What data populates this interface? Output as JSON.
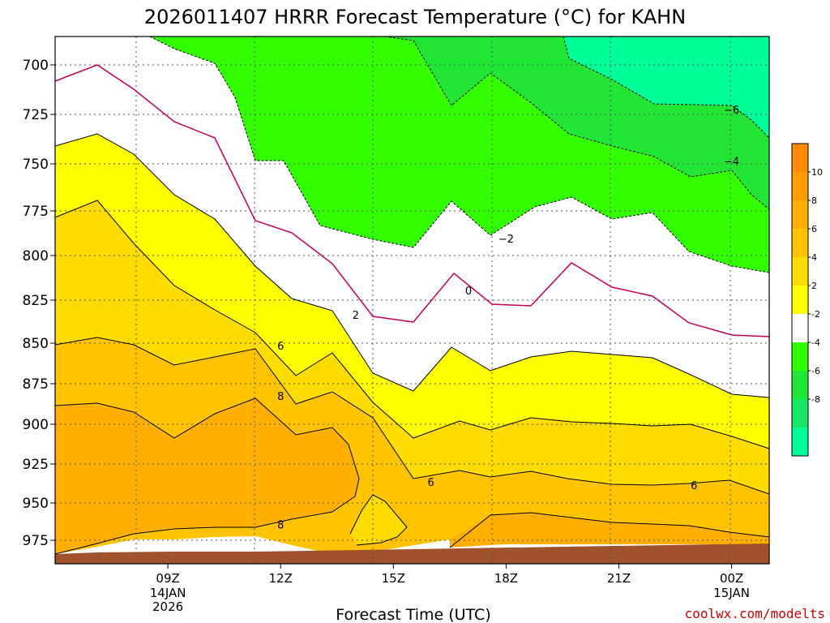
{
  "chart_data": {
    "type": "contour",
    "title": "2026011407 HRRR Forecast Temperature (°C) for KAHN",
    "xlabel": "Forecast Time (UTC)",
    "ylabel": "",
    "credit": "coolwx.com/modelts",
    "y_axis": {
      "quantity": "pressure (hPa)",
      "inverted": true,
      "ticks": [
        700,
        725,
        750,
        775,
        800,
        825,
        850,
        875,
        900,
        925,
        950,
        975
      ]
    },
    "x_axis": {
      "range": [
        "2026-01-14 06Z",
        "2026-01-15 01Z"
      ],
      "ticks": [
        {
          "time": "2026-01-14 09Z",
          "label": "09Z",
          "sub": [
            "14JAN",
            "2026"
          ]
        },
        {
          "time": "2026-01-14 12Z",
          "label": "12Z",
          "sub": []
        },
        {
          "time": "2026-01-14 15Z",
          "label": "15Z",
          "sub": []
        },
        {
          "time": "2026-01-14 18Z",
          "label": "18Z",
          "sub": []
        },
        {
          "time": "2026-01-14 21Z",
          "label": "21Z",
          "sub": []
        },
        {
          "time": "2026-01-15 00Z",
          "label": "00Z",
          "sub": [
            "15JAN"
          ]
        }
      ]
    },
    "grid": true,
    "colorbar": {
      "placement": "right",
      "labels": [
        "10",
        "8",
        "6",
        "4",
        "2",
        "-2",
        "-4",
        "-6",
        "-8"
      ],
      "bands": [
        "#ff8c00",
        "#ff9d00",
        "#ffaf00",
        "#ffc300",
        "#ffdc00",
        "#ffff00",
        "#ffffff",
        "#33ff00",
        "#22e636",
        "#19e664",
        "#00ff99"
      ]
    },
    "contour_labels": [
      {
        "time": "2026-01-14 17Z",
        "pressure": 820,
        "text": "0"
      },
      {
        "time": "2026-01-14 14Z",
        "pressure": 834,
        "text": "2"
      },
      {
        "time": "2026-01-14 18Z",
        "pressure": 791,
        "text": "−2"
      },
      {
        "time": "2026-01-15 00Z",
        "pressure": 749,
        "text": "−4"
      },
      {
        "time": "2026-01-15 00Z",
        "pressure": 723,
        "text": "−6"
      },
      {
        "time": "2026-01-14 12Z",
        "pressure": 852,
        "text": "6"
      },
      {
        "time": "2026-01-14 16Z",
        "pressure": 937,
        "text": "6"
      },
      {
        "time": "2026-01-14 23Z",
        "pressure": 939,
        "text": "6"
      },
      {
        "time": "2026-01-14 12Z",
        "pressure": 883,
        "text": "8"
      },
      {
        "time": "2026-01-14 12Z",
        "pressure": 965,
        "text": "8"
      }
    ],
    "colors": {
      "t_ge_10": "#ff9d00",
      "t_8_10": "#ffaf00",
      "t_6_8": "#ffc300",
      "t_4_6": "#ffdc00",
      "t_2_4": "#ffff00",
      "t_0_2": "#ffffff",
      "t_m2_0": "#ffffff",
      "t_m4_m2": "#33ff00",
      "t_m6_m4": "#22e636",
      "t_le_m6": "#00ff99",
      "freezing_line": "#c0005a",
      "ground": "#a0522d"
    }
  }
}
